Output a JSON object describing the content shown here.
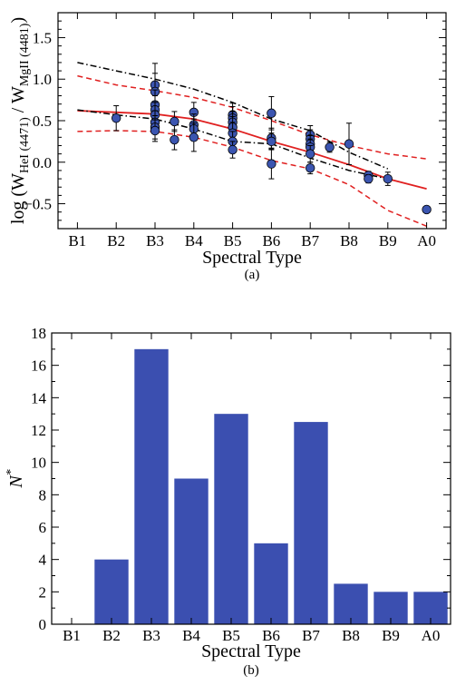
{
  "colors": {
    "marker_fill": "#3b55b0",
    "bar_fill": "#3b4fb0",
    "fit_line": "#e02020",
    "envelope": "#000000"
  },
  "chart_data": [
    {
      "type": "scatter",
      "panel_label": "(a)",
      "xlabel": "Spectral Type",
      "ylabel": "log (W",
      "ylabel_sub1": "HeI (4471)",
      "ylabel_mid": " / W",
      "ylabel_sub2": "MgII (4481)",
      "ylabel_end": ")",
      "categories": [
        "B1",
        "B2",
        "B3",
        "B4",
        "B5",
        "B6",
        "B7",
        "B8",
        "B9",
        "A0"
      ],
      "ylim": [
        -0.8,
        1.8
      ],
      "yticks": [
        -0.5,
        0.0,
        0.5,
        1.0,
        1.5
      ],
      "ytick_labels": [
        "−0.5",
        "0.0",
        "0.5",
        "1.0",
        "1.5"
      ],
      "grid": false,
      "points": [
        {
          "x": 2.0,
          "y": 0.53,
          "err": 0.15
        },
        {
          "x": 3.0,
          "y": 0.93,
          "err": 0.26
        },
        {
          "x": 3.0,
          "y": 0.85,
          "err": 0.22
        },
        {
          "x": 3.0,
          "y": 0.69,
          "err": 0.18
        },
        {
          "x": 3.0,
          "y": 0.63,
          "err": 0.17
        },
        {
          "x": 3.0,
          "y": 0.57,
          "err": 0.15
        },
        {
          "x": 3.0,
          "y": 0.48,
          "err": 0.14
        },
        {
          "x": 3.0,
          "y": 0.42,
          "err": 0.14
        },
        {
          "x": 3.0,
          "y": 0.38,
          "err": 0.13
        },
        {
          "x": 3.5,
          "y": 0.49,
          "err": 0.12
        },
        {
          "x": 3.5,
          "y": 0.27,
          "err": 0.12
        },
        {
          "x": 4.0,
          "y": 0.6,
          "err": 0.12
        },
        {
          "x": 4.0,
          "y": 0.45,
          "err": 0.13
        },
        {
          "x": 4.0,
          "y": 0.4,
          "err": 0.12
        },
        {
          "x": 4.0,
          "y": 0.3,
          "err": 0.17
        },
        {
          "x": 5.0,
          "y": 0.57,
          "err": 0.14
        },
        {
          "x": 5.0,
          "y": 0.53,
          "err": 0.14
        },
        {
          "x": 5.0,
          "y": 0.48,
          "err": 0.13
        },
        {
          "x": 5.0,
          "y": 0.42,
          "err": 0.13
        },
        {
          "x": 5.0,
          "y": 0.35,
          "err": 0.13
        },
        {
          "x": 5.0,
          "y": 0.25,
          "err": 0.12
        },
        {
          "x": 5.0,
          "y": 0.15,
          "err": 0.1
        },
        {
          "x": 6.0,
          "y": 0.59,
          "err": 0.2
        },
        {
          "x": 6.0,
          "y": 0.29,
          "err": 0.12
        },
        {
          "x": 6.0,
          "y": 0.25,
          "err": 0.1
        },
        {
          "x": 6.0,
          "y": -0.02,
          "err": 0.18
        },
        {
          "x": 7.0,
          "y": 0.33,
          "err": 0.11
        },
        {
          "x": 7.0,
          "y": 0.28,
          "err": 0.11
        },
        {
          "x": 7.0,
          "y": 0.22,
          "err": 0.1
        },
        {
          "x": 7.0,
          "y": 0.18,
          "err": 0.1
        },
        {
          "x": 7.0,
          "y": 0.1,
          "err": 0.1
        },
        {
          "x": 7.0,
          "y": -0.07,
          "err": 0.07
        },
        {
          "x": 7.5,
          "y": 0.18,
          "err": 0.06
        },
        {
          "x": 8.0,
          "y": 0.22,
          "err": 0.25
        },
        {
          "x": 8.5,
          "y": -0.16,
          "err": 0.05
        },
        {
          "x": 8.5,
          "y": -0.2,
          "err": 0.05
        },
        {
          "x": 9.0,
          "y": -0.2,
          "err": 0.08
        },
        {
          "x": 10.0,
          "y": -0.57,
          "err": 0.03
        }
      ],
      "lines": [
        {
          "style": "solid",
          "color": "#e02020",
          "x": [
            1,
            2,
            3,
            4,
            5,
            6,
            7,
            8,
            9,
            10
          ],
          "y": [
            0.62,
            0.6,
            0.58,
            0.52,
            0.4,
            0.25,
            0.12,
            -0.03,
            -0.2,
            -0.32
          ]
        },
        {
          "style": "dashed",
          "color": "#e02020",
          "x": [
            1,
            2,
            3,
            4,
            5,
            6,
            7,
            8,
            9,
            10
          ],
          "y": [
            1.04,
            0.93,
            0.86,
            0.78,
            0.66,
            0.5,
            0.33,
            0.2,
            0.1,
            0.04
          ]
        },
        {
          "style": "dashed",
          "color": "#e02020",
          "x": [
            1,
            2,
            3,
            4,
            5,
            6,
            7,
            8,
            9,
            10
          ],
          "y": [
            0.37,
            0.38,
            0.37,
            0.3,
            0.18,
            0.02,
            -0.08,
            -0.27,
            -0.58,
            -0.77
          ]
        },
        {
          "style": "dashdot",
          "color": "#000000",
          "x": [
            1,
            2,
            3,
            4,
            5,
            6,
            7,
            8,
            9
          ],
          "y": [
            1.2,
            1.1,
            1.0,
            0.88,
            0.72,
            0.52,
            0.38,
            0.12,
            -0.08
          ]
        },
        {
          "style": "dashdot",
          "color": "#000000",
          "x": [
            1,
            2,
            3,
            4,
            5,
            6,
            7,
            8,
            9
          ],
          "y": [
            0.63,
            0.57,
            0.52,
            0.4,
            0.25,
            0.22,
            0.05,
            -0.1,
            -0.2
          ]
        }
      ]
    },
    {
      "type": "bar",
      "panel_label": "(b)",
      "xlabel": "Spectral Type",
      "ylabel": "N",
      "ylabel_sup": "*",
      "categories": [
        "B1",
        "B2",
        "B3",
        "B4",
        "B5",
        "B6",
        "B7",
        "B8",
        "B9",
        "A0"
      ],
      "values": [
        0,
        4,
        17,
        9,
        13,
        5,
        12.5,
        2.5,
        2,
        2
      ],
      "ylim": [
        0,
        18
      ],
      "yticks": [
        0,
        2,
        4,
        6,
        8,
        10,
        12,
        14,
        16,
        18
      ],
      "ytick_labels": [
        "0",
        "2",
        "4",
        "6",
        "8",
        "10",
        "12",
        "14",
        "16",
        "18"
      ],
      "grid": false
    }
  ]
}
